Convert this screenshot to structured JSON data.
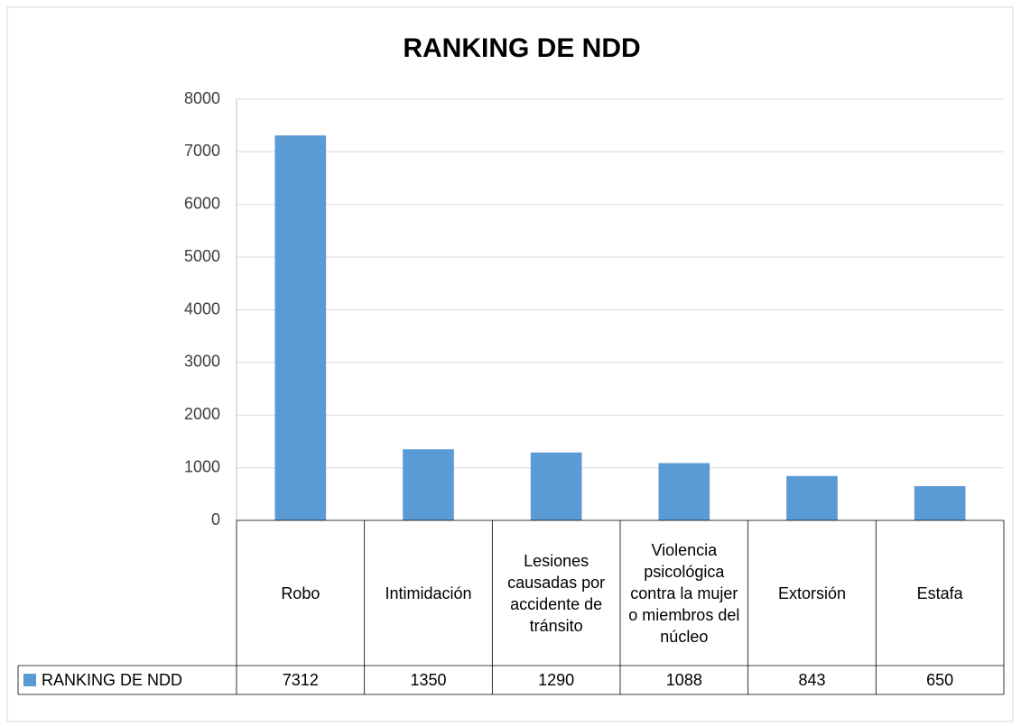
{
  "chart_data": {
    "type": "bar",
    "title": "RANKING DE NDD",
    "categories": [
      "Robo",
      "Intimidación",
      "Lesiones causadas por accidente de tránsito",
      "Violencia psicológica contra la mujer o miembros del núcleo",
      "Extorsión",
      "Estafa"
    ],
    "series": [
      {
        "name": "RANKING DE NDD",
        "color": "#5b9bd5",
        "values": [
          7312,
          1350,
          1290,
          1088,
          843,
          650
        ]
      }
    ],
    "ylim": [
      0,
      8000
    ],
    "yticks": [
      0,
      1000,
      2000,
      3000,
      4000,
      5000,
      6000,
      7000,
      8000
    ],
    "grid": true,
    "legend": "bottom-left"
  }
}
